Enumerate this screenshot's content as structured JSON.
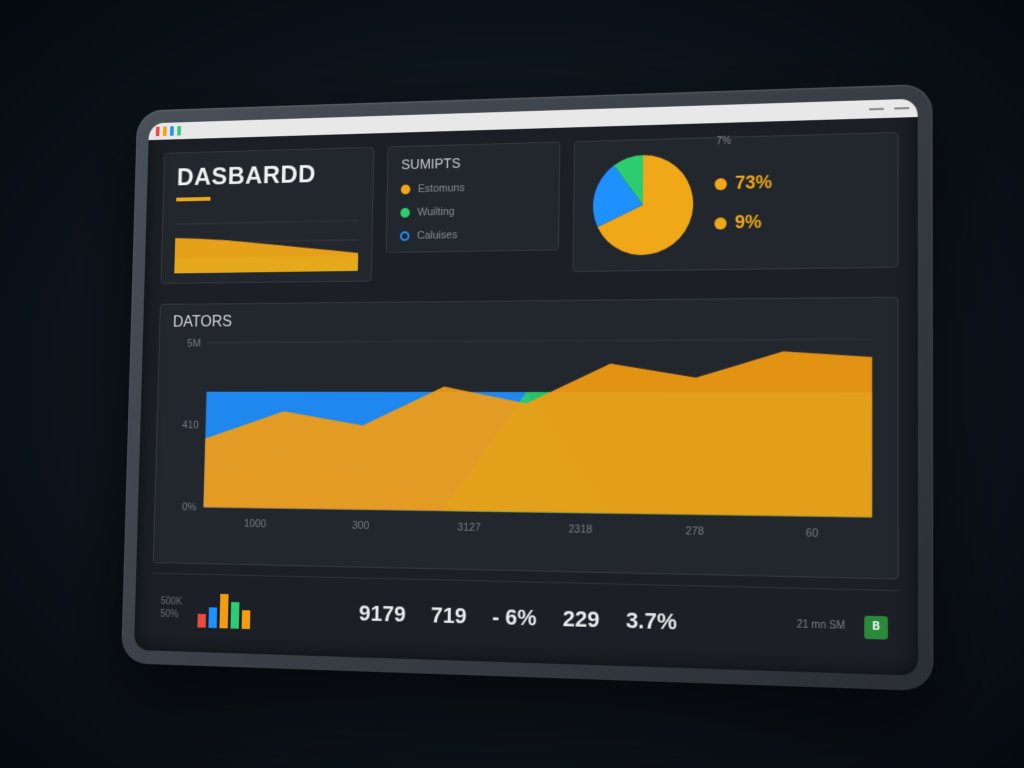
{
  "header": {
    "title": "DASBARDD",
    "accent_color": "#f0a818"
  },
  "mini_area_chart": {
    "type": "area",
    "grid_lines": 3,
    "series": [
      {
        "color": "#2ecc71",
        "points": [
          0.25,
          0.25,
          0.25,
          0.25,
          0.25,
          0.25,
          0.25,
          0.25
        ]
      },
      {
        "color": "#f0a818",
        "points": [
          0.6,
          0.58,
          0.55,
          0.5,
          0.45,
          0.4,
          0.35,
          0.3
        ]
      }
    ],
    "background": "#1c2026"
  },
  "legend_panel": {
    "title": "SUMIPTS",
    "items": [
      {
        "style": "dot",
        "color": "#f0a818",
        "label": "Estomuns"
      },
      {
        "style": "dot",
        "color": "#2ecc71",
        "label": "Wuilting"
      },
      {
        "style": "ring",
        "color": "#1e90ff",
        "label": "Caluises"
      }
    ]
  },
  "pie_panel": {
    "type": "pie",
    "top_label": "7%",
    "slices": [
      {
        "color": "#f0a818",
        "pct": 68,
        "highlight": false
      },
      {
        "color": "#1e90ff",
        "pct": 22,
        "highlight": false
      },
      {
        "color": "#2ecc71",
        "pct": 10,
        "highlight": false
      }
    ],
    "stats": [
      {
        "dot_color": "#f0a818",
        "value": "73%"
      },
      {
        "dot_color": "#f0a818",
        "value": "9%"
      }
    ]
  },
  "main_chart": {
    "title": "DATORS",
    "type": "area",
    "y_labels": [
      "5M",
      "410",
      "0%"
    ],
    "x_labels": [
      "1000",
      "300",
      "3127",
      "2318",
      "278",
      "60"
    ],
    "ylim": [
      0,
      600
    ],
    "grid_color": "#34383e",
    "series": [
      {
        "name": "red",
        "color": "#e74c3c",
        "points": [
          80,
          180,
          120,
          40,
          0,
          0,
          0,
          0,
          0
        ]
      },
      {
        "name": "blue",
        "color": "#1e90ff",
        "points": [
          420,
          420,
          420,
          420,
          420,
          0,
          0,
          0,
          0
        ]
      },
      {
        "name": "green",
        "color": "#2ecc71",
        "points": [
          0,
          0,
          0,
          0,
          420,
          420,
          420,
          420,
          420
        ]
      },
      {
        "name": "orange",
        "color": "#f39c12",
        "points": [
          250,
          350,
          300,
          440,
          380,
          520,
          470,
          560,
          540
        ]
      }
    ]
  },
  "footer": {
    "left_labels": [
      "500K",
      "50%"
    ],
    "mini_bars": {
      "type": "bar",
      "bars": [
        {
          "color": "#e74c3c",
          "h": 0.35
        },
        {
          "color": "#1e90ff",
          "h": 0.55
        },
        {
          "color": "#f39c12",
          "h": 0.9
        },
        {
          "color": "#2ecc71",
          "h": 0.7
        },
        {
          "color": "#f39c12",
          "h": 0.5
        }
      ]
    },
    "metrics": [
      {
        "value": "9179",
        "sub": ""
      },
      {
        "value": "719",
        "sub": ""
      },
      {
        "value": "- 6%",
        "sub": ""
      },
      {
        "value": "229",
        "sub": ""
      },
      {
        "value": "3.7%",
        "sub": ""
      }
    ],
    "right_label": "21 mn SM",
    "badge": "B"
  },
  "colors": {
    "bg": "#1c2026",
    "panel_border": "#35393f",
    "text_primary": "#eef0f2",
    "text_muted": "#8a8f96"
  }
}
